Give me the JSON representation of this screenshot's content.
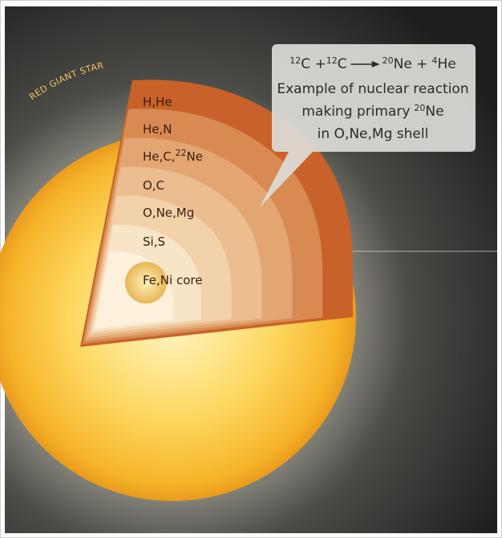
{
  "star_label": "RED GIANT STAR",
  "layers": [
    "H,He",
    "He,N",
    {
      "text": "He,C,",
      "sup": "22",
      "text_after": "Ne"
    },
    "O,C",
    "O,Ne,Mg",
    "Si,S",
    "Fe,Ni core"
  ],
  "callout": {
    "reaction": [
      {
        "sup": "12",
        "text": "C +"
      },
      {
        "sup": "12",
        "text": "C"
      },
      {
        "sup": "20",
        "text": "Ne +"
      },
      {
        "sup": "4",
        "text": "He"
      }
    ],
    "line_1": "Example of nuclear reaction",
    "line_2": {
      "text": "making primary",
      "sup": "20",
      "text_after": "Ne"
    },
    "line_3": "in O,Ne,Mg shell"
  }
}
